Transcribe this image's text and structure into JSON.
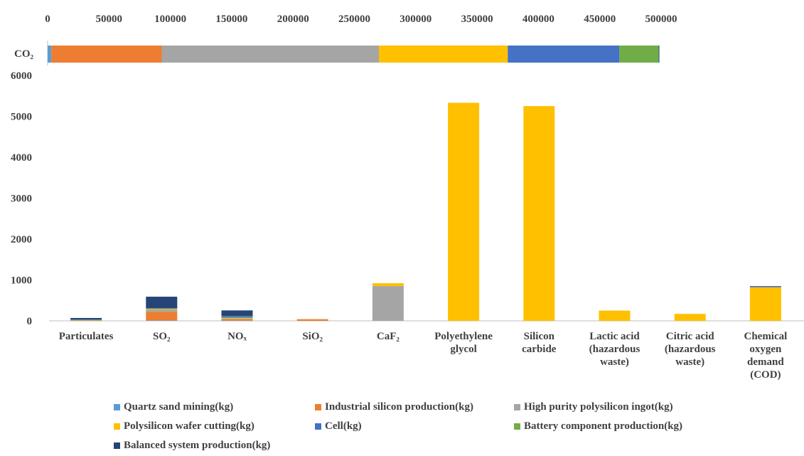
{
  "colors": {
    "quartz": "#5B9BD5",
    "industrial": "#ED7D31",
    "polysilicon_ingot": "#A5A5A5",
    "wafer_cutting": "#FFC000",
    "cell": "#4472C4",
    "battery": "#70AD47",
    "balanced": "#264478",
    "text": "#404040",
    "axis": "#BFBFBF"
  },
  "chart_data": [
    {
      "type": "bar",
      "orientation": "horizontal",
      "stacked": true,
      "categories": [
        "CO₂"
      ],
      "xlim": [
        0,
        500000
      ],
      "xticks": [
        "0",
        "50000",
        "100000",
        "150000",
        "200000",
        "250000",
        "300000",
        "350000",
        "400000",
        "450000",
        "500000"
      ],
      "series": [
        {
          "name": "Quartz sand mining(kg)",
          "values": [
            3000
          ]
        },
        {
          "name": "Industrial silicon production(kg)",
          "values": [
            90000
          ]
        },
        {
          "name": "High purity polysilicon ingot(kg)",
          "values": [
            177000
          ]
        },
        {
          "name": "Polysilicon wafer cutting(kg)",
          "values": [
            105000
          ]
        },
        {
          "name": "Cell(kg)",
          "values": [
            91000
          ]
        },
        {
          "name": "Battery component production(kg)",
          "values": [
            32000
          ]
        },
        {
          "name": "Balanced system production(kg)",
          "values": [
            500
          ]
        }
      ]
    },
    {
      "type": "bar",
      "orientation": "vertical",
      "stacked": true,
      "categories": [
        [
          "Particulates"
        ],
        [
          "SO₂"
        ],
        [
          "NOₓ"
        ],
        [
          "SiO₂"
        ],
        [
          "CaF₂"
        ],
        [
          "Polyethylene",
          "glycol"
        ],
        [
          "Silicon",
          "carbide"
        ],
        [
          "Lactic acid",
          "(hazardous",
          "waste)"
        ],
        [
          "Citric acid",
          "(hazardous",
          "waste)"
        ],
        [
          "Chemical",
          "oxygen",
          "demand",
          "(COD)"
        ]
      ],
      "ylim": [
        0,
        6000
      ],
      "yticks": [
        "0",
        "1000",
        "2000",
        "3000",
        "4000",
        "5000",
        "6000"
      ],
      "series": [
        {
          "name": "Quartz sand mining(kg)",
          "values": [
            5,
            10,
            5,
            0,
            0,
            0,
            0,
            0,
            0,
            0
          ]
        },
        {
          "name": "Industrial silicon production(kg)",
          "values": [
            5,
            210,
            30,
            40,
            0,
            0,
            0,
            0,
            0,
            0
          ]
        },
        {
          "name": "High purity polysilicon ingot(kg)",
          "values": [
            5,
            50,
            20,
            0,
            850,
            0,
            0,
            0,
            0,
            0
          ]
        },
        {
          "name": "Polysilicon wafer cutting(kg)",
          "values": [
            5,
            20,
            20,
            0,
            70,
            5330,
            5250,
            250,
            170,
            820
          ]
        },
        {
          "name": "Cell(kg)",
          "values": [
            5,
            15,
            30,
            0,
            0,
            0,
            0,
            0,
            0,
            20
          ]
        },
        {
          "name": "Battery component production(kg)",
          "values": [
            5,
            5,
            10,
            0,
            0,
            0,
            0,
            0,
            0,
            0
          ]
        },
        {
          "name": "Balanced system production(kg)",
          "values": [
            40,
            280,
            140,
            0,
            0,
            0,
            0,
            0,
            0,
            10
          ]
        }
      ]
    }
  ],
  "legend": {
    "rows": [
      [
        {
          "label": "Quartz sand mining(kg)",
          "color": "#5B9BD5"
        },
        {
          "label": "Industrial silicon production(kg)",
          "color": "#ED7D31"
        },
        {
          "label": "High purity polysilicon ingot(kg)",
          "color": "#A5A5A5"
        }
      ],
      [
        {
          "label": "Polysilicon wafer cutting(kg)",
          "color": "#FFC000"
        },
        {
          "label": "Cell(kg)",
          "color": "#4472C4"
        },
        {
          "label": "Battery component production(kg)",
          "color": "#70AD47"
        }
      ],
      [
        {
          "label": "Balanced system production(kg)",
          "color": "#264478"
        }
      ]
    ]
  }
}
